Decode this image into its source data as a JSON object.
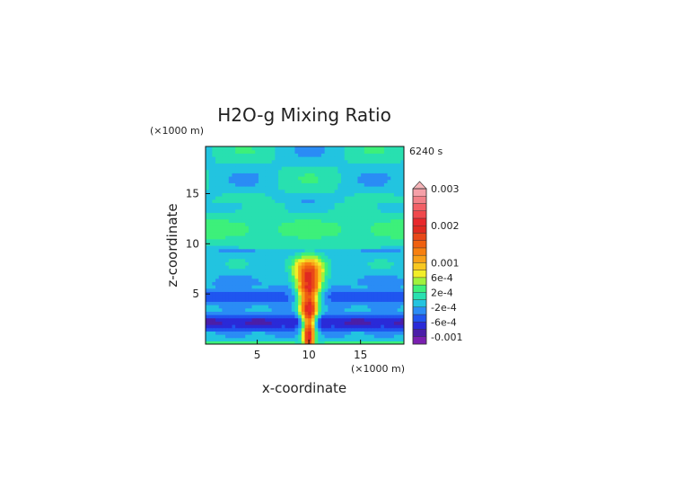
{
  "chart_data": {
    "type": "heatmap",
    "title": "H2O-g Mixing Ratio",
    "time_label": "6240 s",
    "xlabel": "x-coordinate",
    "ylabel": "z-coordinate",
    "x_unit": "(×1000 m)",
    "y_unit": "(×1000 m)",
    "xlim": [
      0,
      19.2
    ],
    "ylim": [
      0,
      19.7
    ],
    "x_ticks": [
      5,
      10,
      15
    ],
    "y_ticks": [
      5,
      10,
      15
    ],
    "x_tick_labels": [
      "5",
      "10",
      "15"
    ],
    "y_tick_labels": [
      "5",
      "10",
      "15"
    ],
    "colorbar": {
      "levels": [
        -0.0012,
        -0.001,
        -0.0008,
        -0.0006,
        -0.0004,
        -0.0002,
        0,
        0.0002,
        0.0004,
        0.0006,
        0.0008,
        0.001,
        0.0012,
        0.0014,
        0.0016,
        0.0018,
        0.002,
        0.0022,
        0.0024,
        0.0026,
        0.0028,
        0.003
      ],
      "colors": [
        "#7a1fb0",
        "#4b1ea8",
        "#2a2ad8",
        "#1f55f0",
        "#2a8cf5",
        "#22c4e0",
        "#28e0b0",
        "#3df07a",
        "#a0f23c",
        "#f2ee28",
        "#f7c820",
        "#f7a018",
        "#f78010",
        "#ef6010",
        "#e84818",
        "#e02a20",
        "#e8282c",
        "#f0484c",
        "#f26066",
        "#f28088",
        "#f5a0a8",
        "#f5b4b8"
      ],
      "tick_labels": [
        "0.003",
        "0.002",
        "0.001",
        "6e-4",
        "2e-4",
        "-2e-4",
        "-6e-4",
        "-0.001"
      ],
      "tick_values": [
        0.003,
        0.002,
        0.001,
        0.0006,
        0.0002,
        -0.0002,
        -0.0006,
        -0.001
      ]
    },
    "field_description_values": {
      "plume_center_x": 10,
      "plume_max_value": 0.0022,
      "plume_top_z": 10
    }
  }
}
